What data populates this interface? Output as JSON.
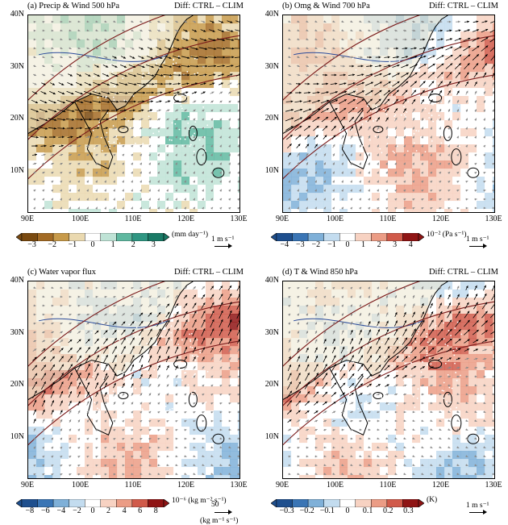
{
  "panels": [
    {
      "title": "(a) Precip & Wind 500 hPa",
      "diff": "Diff: CTRL – CLIM",
      "cbar_ticks": [
        "−3",
        "−2",
        "−1",
        "0",
        "1",
        "2",
        "3"
      ],
      "cbar_unit": "(mm day⁻¹)",
      "ref_vector": "1 m s⁻¹",
      "palette": "brown-green"
    },
    {
      "title": "(b) Omg & Wind 700 hPa",
      "diff": "Diff: CTRL – CLIM",
      "cbar_ticks": [
        "−4",
        "−3",
        "−2",
        "−1",
        "0",
        "1",
        "2",
        "3",
        "4"
      ],
      "cbar_unit": "10⁻² (Pa s⁻¹)",
      "ref_vector": "1 m s⁻¹",
      "palette": "blue-red"
    },
    {
      "title": "(c) Water vapor flux",
      "diff": "Diff: CTRL – CLIM",
      "cbar_ticks": [
        "−8",
        "−6",
        "−4",
        "−2",
        "0",
        "2",
        "4",
        "6",
        "8"
      ],
      "cbar_unit": "10⁻⁶ (kg m⁻² s⁻¹)",
      "ref_vector": "50",
      "ref_unit": "(kg m⁻¹ s⁻¹)",
      "palette": "blue-red"
    },
    {
      "title": "(d) T & Wind 850 hPa",
      "diff": "Diff: CTRL – CLIM",
      "cbar_ticks": [
        "−0.3",
        "−0.2",
        "−0.1",
        "0",
        "0.1",
        "0.2",
        "0.3"
      ],
      "cbar_unit": "(K)",
      "ref_vector": "1 m s⁻¹",
      "palette": "blue-red"
    }
  ],
  "lat_labels": [
    "40N",
    "30N",
    "20N",
    "10N"
  ],
  "lon_labels": [
    "90E",
    "100E",
    "110E",
    "120E",
    "130E"
  ],
  "colors": {
    "brown_dark": "#7a4a10",
    "brown_mid": "#c79a4a",
    "brown_light": "#ead9b0",
    "green_light": "#bfe3d6",
    "green_mid": "#5fb8a0",
    "green_dark": "#1a7a66",
    "blue_dark": "#2a5fa0",
    "blue_mid": "#7fb0d8",
    "blue_light": "#d0e4f2",
    "red_light": "#f5d0c0",
    "red_mid": "#e08070",
    "red_dark": "#a01818",
    "land": "#ece8d0"
  }
}
